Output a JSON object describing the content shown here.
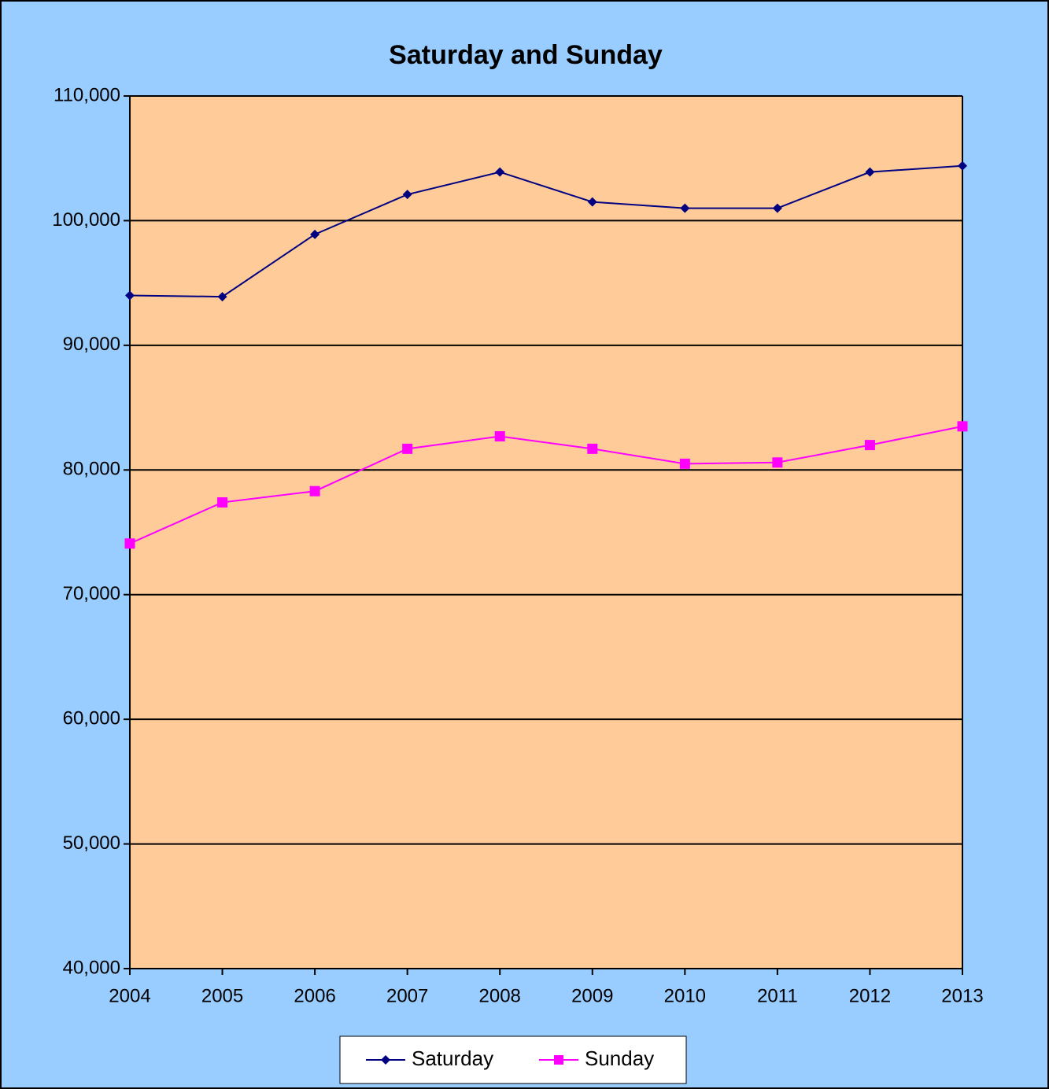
{
  "chart_data": {
    "type": "line",
    "title": "Saturday and Sunday",
    "categories": [
      "2004",
      "2005",
      "2006",
      "2007",
      "2008",
      "2009",
      "2010",
      "2011",
      "2012",
      "2013"
    ],
    "series": [
      {
        "name": "Saturday",
        "color": "#000080",
        "marker": "diamond",
        "values": [
          94000,
          93900,
          98900,
          102100,
          103900,
          101500,
          101000,
          101000,
          103900,
          104400
        ]
      },
      {
        "name": "Sunday",
        "color": "#ff00ff",
        "marker": "square",
        "values": [
          74100,
          77400,
          78300,
          81700,
          82700,
          81700,
          80500,
          80600,
          82000,
          83500
        ]
      }
    ],
    "ylim": [
      40000,
      110000
    ],
    "yticks": [
      {
        "value": 40000,
        "label": "40,000"
      },
      {
        "value": 50000,
        "label": "50,000"
      },
      {
        "value": 60000,
        "label": "60,000"
      },
      {
        "value": 70000,
        "label": "70,000"
      },
      {
        "value": 80000,
        "label": "80,000"
      },
      {
        "value": 90000,
        "label": "90,000"
      },
      {
        "value": 100000,
        "label": "100,000"
      },
      {
        "value": 110000,
        "label": "110,000"
      }
    ],
    "grid": true,
    "legend": "bottom"
  }
}
